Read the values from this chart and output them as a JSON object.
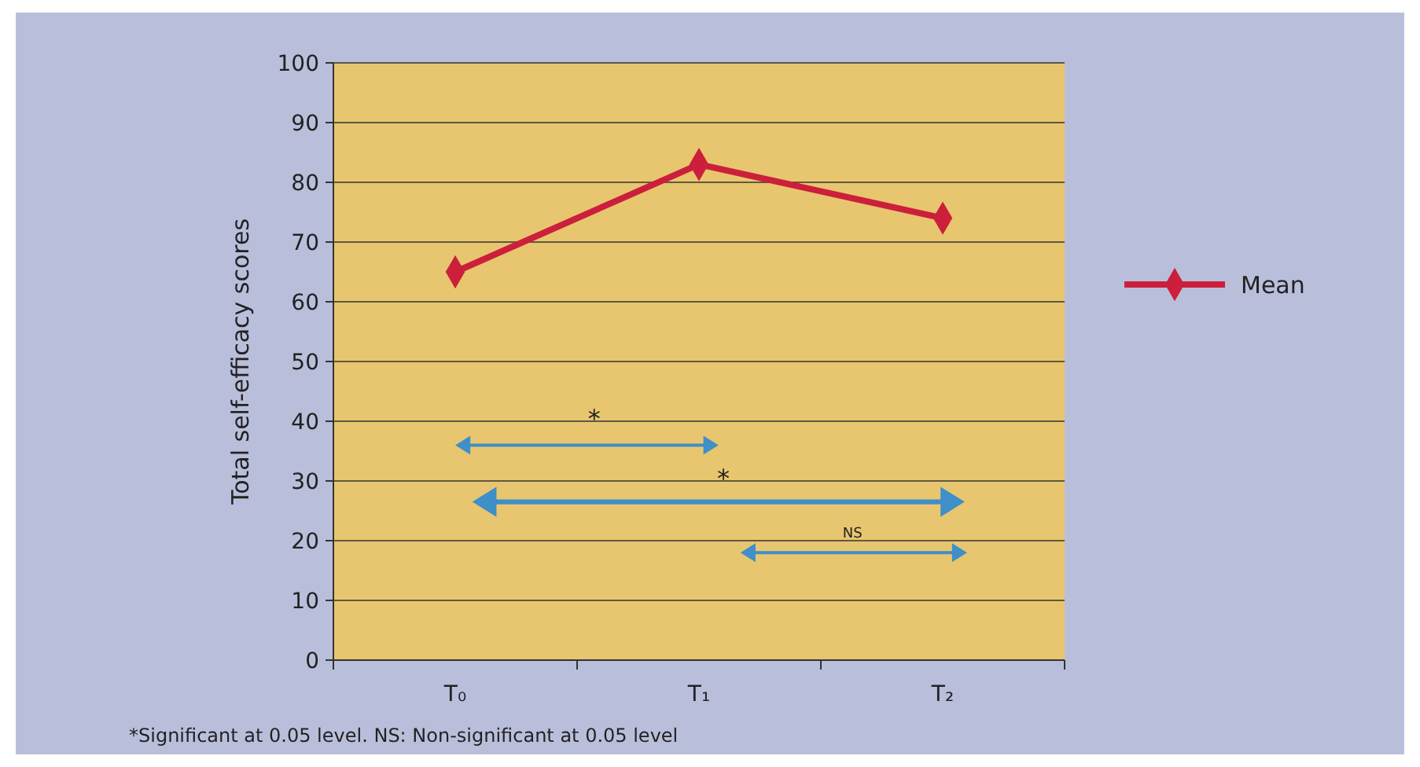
{
  "chart_data": {
    "type": "line",
    "ylabel": "Total self-efficacy scores",
    "categories": [
      "T₀",
      "T₁",
      "T₂"
    ],
    "series": [
      {
        "name": "Mean",
        "color": "#cc1f3c",
        "values": [
          65,
          83,
          74
        ]
      }
    ],
    "ylim": [
      0,
      100
    ],
    "yticks": [
      0,
      10,
      20,
      30,
      40,
      50,
      60,
      70,
      80,
      90,
      100
    ],
    "grid": "y",
    "legend": "right",
    "marker": "diamond",
    "line_style": "solid",
    "annotations": [
      "*",
      "*",
      "NS",
      "*Significant at 0.05 level. NS: Non-significant at 0.05 level"
    ]
  }
}
